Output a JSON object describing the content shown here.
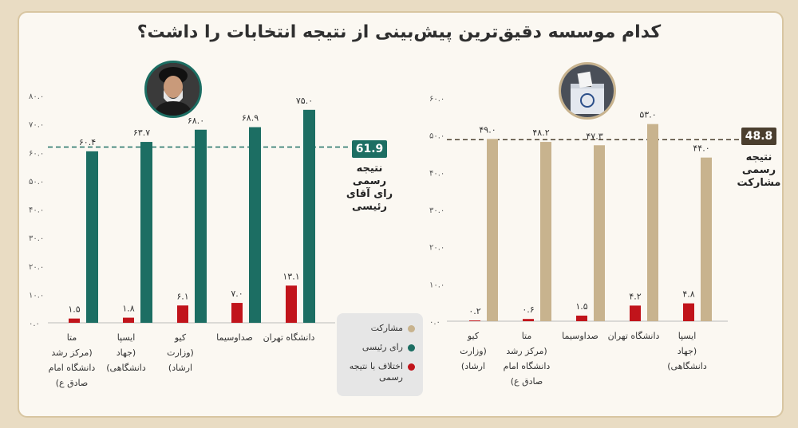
{
  "title": "کدام موسسه دقیق‌ترین پیش‌بینی از نتیجه انتخابات را داشت؟",
  "colors": {
    "participation": "#c8b38e",
    "raisi_vote": "#1c6e63",
    "difference": "#c1141b",
    "raisi_box": "#1c6e63",
    "participation_box": "#4b3f2f"
  },
  "legend": [
    {
      "label": "مشارکت",
      "color": "#c8b38e"
    },
    {
      "label": "رای رئیسی",
      "color": "#1c6e63"
    },
    {
      "label": "اختلاف با نتیجه رسمی",
      "color": "#c1141b"
    }
  ],
  "official_raisi": {
    "value": "61.9",
    "note": [
      "نتیجه",
      "رسمی",
      "رای آقای",
      "رئیسی"
    ]
  },
  "official_participation": {
    "value": "48.8",
    "note": [
      "نتیجه",
      "رسمی",
      "مشارکت"
    ]
  },
  "chart_data": [
    {
      "type": "bar",
      "name": "raisi",
      "ylim": [
        0,
        80
      ],
      "yticks": [
        "۰.۰",
        "۱۰.۰",
        "۲۰.۰",
        "۳۰.۰",
        "۴۰.۰",
        "۵۰.۰",
        "۶۰.۰",
        "۷۰.۰",
        "۸۰.۰"
      ],
      "categories": [
        [
          "متا",
          "(مرکز رشد",
          "دانشگاه امام",
          "صادق ع)"
        ],
        [
          "ایسپا",
          "(جهاد",
          "دانشگاهی)"
        ],
        [
          "کیو",
          "(وزارت",
          "ارشاد)"
        ],
        [
          "صداوسیما"
        ],
        [
          "دانشگاه تهران"
        ]
      ],
      "main_values": [
        60.4,
        63.7,
        68.0,
        68.9,
        75.0
      ],
      "main_labels": [
        "۶۰.۴",
        "۶۳.۷",
        "۶۸.۰",
        "۶۸.۹",
        "۷۵.۰"
      ],
      "diff_values": [
        1.5,
        1.8,
        6.1,
        7.0,
        13.1
      ],
      "diff_labels": [
        "۱.۵",
        "۱.۸",
        "۶.۱",
        "۷.۰",
        "۱۳.۱"
      ],
      "reference": 61.9
    },
    {
      "type": "bar",
      "name": "participation",
      "ylim": [
        0,
        60
      ],
      "yticks": [
        "۰.۰",
        "۱۰.۰",
        "۲۰.۰",
        "۳۰.۰",
        "۴۰.۰",
        "۵۰.۰",
        "۶۰.۰"
      ],
      "categories": [
        [
          "کیو",
          "(وزارت",
          "ارشاد)"
        ],
        [
          "متا",
          "(مرکز رشد",
          "دانشگاه امام",
          "صادق ع)"
        ],
        [
          "صداوسیما"
        ],
        [
          "دانشگاه تهران"
        ],
        [
          "ایسپا",
          "(جهاد",
          "دانشگاهی)"
        ]
      ],
      "main_values": [
        49.0,
        48.2,
        47.3,
        53.0,
        44.0
      ],
      "main_labels": [
        "۴۹.۰",
        "۴۸.۲",
        "۴۷.۳",
        "۵۳.۰",
        "۴۴.۰"
      ],
      "diff_values": [
        0.2,
        0.6,
        1.5,
        4.2,
        4.8
      ],
      "diff_labels": [
        "۰.۲",
        "۰.۶",
        "۱.۵",
        "۴.۲",
        "۴.۸"
      ],
      "reference": 48.8
    }
  ]
}
